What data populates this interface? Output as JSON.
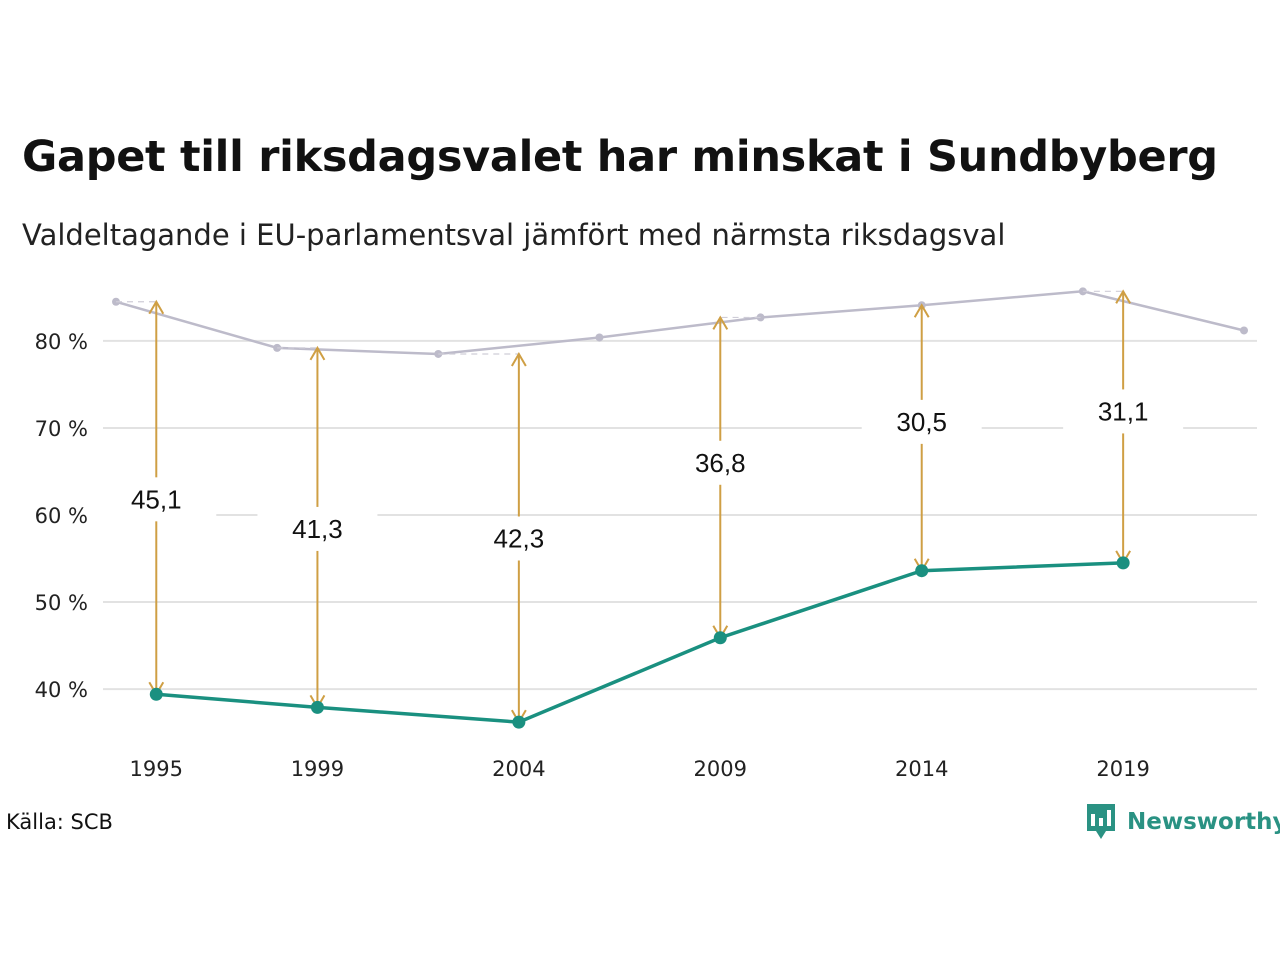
{
  "title": "Gapet till riksdagsvalet har minskat i Sundbyberg",
  "subtitle": "Valdeltagande i EU-parlamentsval jämfört med närmsta riksdagsval",
  "source": "Källa: SCB",
  "brand": "Newsworthy",
  "colors": {
    "eu": "#1a9080",
    "riksdag": "#bdbbca",
    "arrow": "#cf9f44",
    "grid": "#e2e2e2",
    "brand": "#2a9283"
  },
  "chart_data": {
    "type": "line",
    "title": "Gapet till riksdagsvalet har minskat i Sundbyberg",
    "subtitle": "Valdeltagande i EU-parlamentsval jämfört med närmsta riksdagsval",
    "ylim": [
      33,
      87
    ],
    "yticks": [
      40,
      50,
      60,
      70,
      80
    ],
    "ytick_labels": [
      "40 %",
      "50 %",
      "60 %",
      "70 %",
      "80 %"
    ],
    "xlim": [
      1994.0,
      2022.0
    ],
    "xtick_labels": [
      "1995",
      "1999",
      "2004",
      "2009",
      "2014",
      "2019"
    ],
    "xticks": [
      1995,
      1999,
      2004,
      2009,
      2014,
      2019
    ],
    "grid": true,
    "series": [
      {
        "key": "riksdag",
        "x": [
          1994,
          1998,
          2002,
          2006,
          2010,
          2014,
          2018,
          2022
        ],
        "values": [
          84.5,
          79.2,
          78.5,
          80.4,
          82.7,
          84.1,
          85.7,
          81.2
        ]
      },
      {
        "key": "eu",
        "x": [
          1995,
          1999,
          2004,
          2009,
          2014,
          2019
        ],
        "values": [
          39.4,
          37.9,
          36.2,
          45.9,
          53.6,
          54.5
        ]
      }
    ],
    "gaps": [
      {
        "x": 1995,
        "top": 84.5,
        "bottom": 39.4,
        "label": "45,1",
        "label_y": 61.8
      },
      {
        "x": 1999,
        "top": 79.2,
        "bottom": 37.9,
        "label": "41,3",
        "label_y": 58.4
      },
      {
        "x": 2004,
        "top": 78.5,
        "bottom": 36.2,
        "label": "42,3",
        "label_y": 57.3
      },
      {
        "x": 2009,
        "top": 82.7,
        "bottom": 45.9,
        "label": "36,8",
        "label_y": 66.0
      },
      {
        "x": 2014,
        "top": 84.1,
        "bottom": 53.6,
        "label": "30,5",
        "label_y": 70.7
      },
      {
        "x": 2019,
        "top": 85.7,
        "bottom": 54.5,
        "label": "31,1",
        "label_y": 71.9
      }
    ]
  }
}
